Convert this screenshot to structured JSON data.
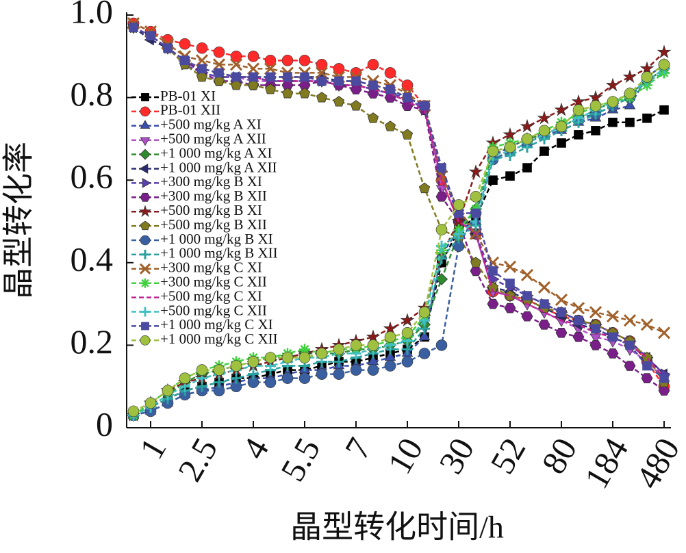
{
  "chart_data": {
    "type": "line",
    "xlabel": "晶型转化时间/h",
    "ylabel": "晶型转化率",
    "categories": [
      null,
      "1",
      null,
      null,
      "2.5",
      null,
      null,
      "4",
      null,
      null,
      "5.5",
      null,
      null,
      "7",
      null,
      null,
      "10",
      null,
      null,
      "30",
      null,
      null,
      "52",
      null,
      null,
      "80",
      null,
      null,
      "184",
      null,
      null,
      "480"
    ],
    "ylim": [
      0,
      1
    ],
    "yticks": [
      0,
      0.2,
      0.4,
      0.6,
      0.8,
      {
        "value": 1,
        "label": "1.0"
      }
    ],
    "legend": "upper left",
    "series": [
      {
        "name": "PB-01 XI",
        "color": "#000000",
        "marker": "square",
        "values": [
          0.03,
          0.05,
          0.07,
          0.09,
          0.1,
          0.11,
          0.12,
          0.12,
          0.13,
          0.14,
          0.14,
          0.15,
          0.16,
          0.16,
          0.17,
          0.18,
          0.19,
          0.22,
          0.4,
          0.48,
          0.51,
          0.6,
          0.61,
          0.63,
          0.67,
          0.69,
          0.71,
          0.72,
          0.74,
          0.74,
          0.75,
          0.77
        ]
      },
      {
        "name": "PB-01 XII",
        "color": "#ff2a2a",
        "marker": "circle",
        "values": [
          0.98,
          0.96,
          0.94,
          0.93,
          0.92,
          0.91,
          0.9,
          0.9,
          0.89,
          0.89,
          0.89,
          0.88,
          0.87,
          0.86,
          0.88,
          0.86,
          0.83,
          0.78,
          0.6,
          0.5,
          0.47,
          0.33,
          0.32,
          0.31,
          0.29,
          0.27,
          0.26,
          0.25,
          0.23,
          0.21,
          0.16,
          0.1
        ]
      },
      {
        "name": "+500 mg/kg A XI",
        "color": "#3a4fb0",
        "marker": "triangle-up",
        "values": [
          0.03,
          0.04,
          0.06,
          0.08,
          0.09,
          0.1,
          0.11,
          0.12,
          0.12,
          0.13,
          0.14,
          0.14,
          0.15,
          0.15,
          0.16,
          0.17,
          0.18,
          0.22,
          0.42,
          0.48,
          0.5,
          0.66,
          0.68,
          0.7,
          0.71,
          0.72,
          0.74,
          0.75,
          0.77,
          0.78,
          0.85,
          0.88
        ]
      },
      {
        "name": "+500 mg/kg A XII",
        "color": "#b050c8",
        "marker": "triangle-down",
        "values": [
          0.97,
          0.95,
          0.92,
          0.89,
          0.86,
          0.85,
          0.85,
          0.84,
          0.84,
          0.84,
          0.84,
          0.84,
          0.83,
          0.83,
          0.82,
          0.81,
          0.79,
          0.78,
          0.58,
          0.52,
          0.47,
          0.33,
          0.32,
          0.3,
          0.28,
          0.26,
          0.24,
          0.22,
          0.21,
          0.19,
          0.16,
          0.12
        ]
      },
      {
        "name": "+1 000 mg/kg A XI",
        "color": "#2e8b2e",
        "marker": "diamond",
        "values": [
          0.03,
          0.05,
          0.08,
          0.11,
          0.13,
          0.14,
          0.15,
          0.16,
          0.17,
          0.17,
          0.18,
          0.18,
          0.18,
          0.19,
          0.19,
          0.2,
          0.21,
          0.25,
          0.36,
          0.47,
          0.53,
          0.67,
          0.68,
          0.7,
          0.71,
          0.73,
          0.75,
          0.77,
          0.79,
          0.81,
          0.84,
          0.87
        ]
      },
      {
        "name": "+1 000 mg/kg A XII",
        "color": "#2a2a70",
        "marker": "triangle-left",
        "values": [
          0.97,
          0.94,
          0.92,
          0.89,
          0.87,
          0.86,
          0.85,
          0.85,
          0.85,
          0.85,
          0.85,
          0.85,
          0.84,
          0.84,
          0.83,
          0.82,
          0.8,
          0.78,
          0.63,
          0.52,
          0.47,
          0.34,
          0.33,
          0.31,
          0.29,
          0.27,
          0.25,
          0.24,
          0.22,
          0.2,
          0.17,
          0.13
        ]
      },
      {
        "name": "+300 mg/kg B XI",
        "color": "#5a3fb0",
        "marker": "triangle-right",
        "values": [
          0.97,
          0.95,
          0.92,
          0.88,
          0.86,
          0.85,
          0.85,
          0.85,
          0.84,
          0.84,
          0.84,
          0.84,
          0.83,
          0.83,
          0.82,
          0.81,
          0.8,
          0.77,
          0.62,
          0.51,
          0.47,
          0.36,
          0.34,
          0.32,
          0.3,
          0.28,
          0.26,
          0.25,
          0.23,
          0.21,
          0.17,
          0.13
        ]
      },
      {
        "name": "+300 mg/kg B XII",
        "color": "#7a1f8a",
        "marker": "hexagon",
        "values": [
          0.97,
          0.95,
          0.92,
          0.89,
          0.86,
          0.84,
          0.84,
          0.83,
          0.83,
          0.83,
          0.83,
          0.84,
          0.83,
          0.82,
          0.81,
          0.8,
          0.78,
          0.77,
          0.56,
          0.5,
          0.38,
          0.3,
          0.29,
          0.27,
          0.25,
          0.23,
          0.22,
          0.2,
          0.18,
          0.15,
          0.12,
          0.09
        ]
      },
      {
        "name": "+500 mg/kg B XI",
        "color": "#8b1a1a",
        "marker": "star",
        "values": [
          0.03,
          0.06,
          0.09,
          0.11,
          0.12,
          0.13,
          0.14,
          0.15,
          0.16,
          0.17,
          0.18,
          0.19,
          0.2,
          0.21,
          0.22,
          0.24,
          0.26,
          0.29,
          0.42,
          0.5,
          0.62,
          0.69,
          0.71,
          0.73,
          0.75,
          0.77,
          0.79,
          0.8,
          0.83,
          0.85,
          0.87,
          0.91
        ]
      },
      {
        "name": "+500 mg/kg B XII",
        "color": "#807a20",
        "marker": "pentagon",
        "values": [
          0.97,
          0.95,
          0.92,
          0.88,
          0.85,
          0.84,
          0.83,
          0.83,
          0.82,
          0.81,
          0.81,
          0.8,
          0.79,
          0.78,
          0.75,
          0.73,
          0.71,
          0.58,
          0.48,
          0.46,
          0.4,
          0.34,
          0.32,
          0.31,
          0.29,
          0.28,
          0.26,
          0.25,
          0.23,
          0.21,
          0.17,
          0.11
        ]
      },
      {
        "name": "+1 000 mg/kg B XI",
        "color": "#3a5fa0",
        "marker": "circle",
        "values": [
          0.03,
          0.04,
          0.06,
          0.08,
          0.09,
          0.09,
          0.1,
          0.11,
          0.11,
          0.12,
          0.12,
          0.13,
          0.13,
          0.14,
          0.14,
          0.15,
          0.16,
          0.18,
          0.2,
          0.44,
          0.52,
          0.65,
          0.67,
          0.69,
          0.71,
          0.73,
          0.75,
          0.76,
          0.78,
          0.8,
          0.85,
          0.88
        ]
      },
      {
        "name": "+1 000 mg/kg B XII",
        "color": "#2aa0a0",
        "marker": "plus",
        "values": [
          0.03,
          0.05,
          0.07,
          0.09,
          0.1,
          0.11,
          0.12,
          0.13,
          0.14,
          0.15,
          0.15,
          0.16,
          0.16,
          0.17,
          0.18,
          0.19,
          0.19,
          0.24,
          0.41,
          0.46,
          0.49,
          0.65,
          0.66,
          0.68,
          0.7,
          0.72,
          0.74,
          0.76,
          0.78,
          0.8,
          0.84,
          0.86
        ]
      },
      {
        "name": "+300 mg/kg C XI",
        "color": "#a0602a",
        "marker": "x",
        "values": [
          0.98,
          0.96,
          0.93,
          0.9,
          0.89,
          0.88,
          0.88,
          0.87,
          0.87,
          0.86,
          0.86,
          0.86,
          0.85,
          0.85,
          0.84,
          0.83,
          0.81,
          0.78,
          0.61,
          0.53,
          0.47,
          0.4,
          0.39,
          0.37,
          0.34,
          0.31,
          0.29,
          0.28,
          0.27,
          0.26,
          0.25,
          0.23
        ]
      },
      {
        "name": "+300 mg/kg C XII",
        "color": "#40d040",
        "marker": "asterisk",
        "values": [
          0.03,
          0.06,
          0.09,
          0.12,
          0.14,
          0.15,
          0.16,
          0.17,
          0.17,
          0.18,
          0.19,
          0.18,
          0.19,
          0.19,
          0.2,
          0.21,
          0.22,
          0.27,
          0.43,
          0.48,
          0.53,
          0.68,
          0.69,
          0.7,
          0.72,
          0.74,
          0.76,
          0.78,
          0.79,
          0.8,
          0.83,
          0.86
        ]
      },
      {
        "name": "+500 mg/kg C XI",
        "color": "#c02090",
        "marker": "none",
        "values": [
          0.97,
          0.95,
          0.92,
          0.89,
          0.87,
          0.86,
          0.85,
          0.85,
          0.84,
          0.84,
          0.84,
          0.84,
          0.83,
          0.83,
          0.82,
          0.81,
          0.79,
          0.77,
          0.6,
          0.5,
          0.47,
          0.33,
          0.32,
          0.3,
          0.28,
          0.26,
          0.25,
          0.23,
          0.22,
          0.2,
          0.17,
          0.12
        ]
      },
      {
        "name": "+500 mg/kg C XII",
        "color": "#40c0c0",
        "marker": "plus",
        "values": [
          0.03,
          0.05,
          0.08,
          0.1,
          0.12,
          0.13,
          0.14,
          0.15,
          0.15,
          0.16,
          0.17,
          0.17,
          0.18,
          0.18,
          0.19,
          0.2,
          0.21,
          0.26,
          0.44,
          0.47,
          0.5,
          0.66,
          0.67,
          0.69,
          0.71,
          0.73,
          0.75,
          0.77,
          0.79,
          0.81,
          0.84,
          0.87
        ]
      },
      {
        "name": "+1 000 mg/kg C XI",
        "color": "#4a4aa0",
        "marker": "square",
        "values": [
          0.97,
          0.95,
          0.92,
          0.89,
          0.87,
          0.86,
          0.85,
          0.85,
          0.85,
          0.85,
          0.85,
          0.84,
          0.84,
          0.84,
          0.83,
          0.82,
          0.8,
          0.78,
          0.63,
          0.52,
          0.52,
          0.38,
          0.35,
          0.32,
          0.3,
          0.28,
          0.26,
          0.24,
          0.22,
          0.2,
          0.15,
          0.12
        ]
      },
      {
        "name": "+1 000 mg/kg C XII",
        "color": "#a0c040",
        "marker": "circle",
        "values": [
          0.04,
          0.06,
          0.09,
          0.12,
          0.14,
          0.14,
          0.15,
          0.16,
          0.17,
          0.17,
          0.17,
          0.18,
          0.19,
          0.2,
          0.2,
          0.22,
          0.23,
          0.28,
          0.48,
          0.54,
          0.56,
          0.67,
          0.68,
          0.7,
          0.72,
          0.73,
          0.77,
          0.78,
          0.79,
          0.81,
          0.85,
          0.88
        ]
      }
    ]
  }
}
